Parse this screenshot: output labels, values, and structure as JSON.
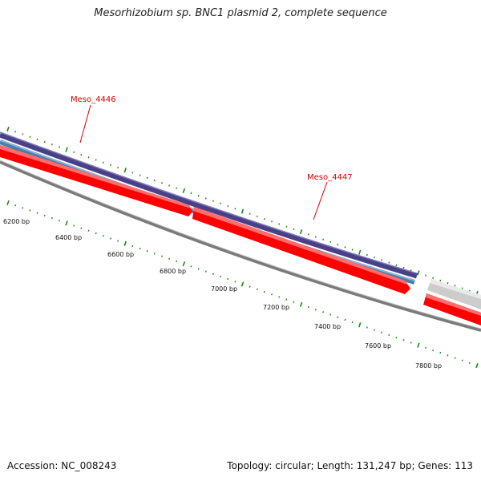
{
  "title": "Mesorhizobium sp. BNC1 plasmid 2, complete sequence",
  "footer": {
    "accession_label": "Accession:",
    "accession": "NC_008243",
    "topology_text": "Topology: circular; Length: 131,247 bp; Genes: 113"
  },
  "bp_labels": [
    "6200 bp",
    "6400 bp",
    "6600 bp",
    "6800 bp",
    "7000 bp",
    "7200 bp",
    "7400 bp",
    "7600 bp",
    "7800 bp"
  ],
  "genes": [
    {
      "name": "Meso_4446",
      "color": "#ff0000"
    },
    {
      "name": "Meso_4447",
      "color": "#ff0000"
    }
  ],
  "colors": {
    "gene_red": "#ff0000",
    "cds_blue": "#4a7fb0",
    "cds_purple": "#4a4088",
    "backbone": "#7a7a7a",
    "tick_green": "#1a8a1a",
    "label_red": "#d40000",
    "other_gene_gray": "#cccccc"
  }
}
